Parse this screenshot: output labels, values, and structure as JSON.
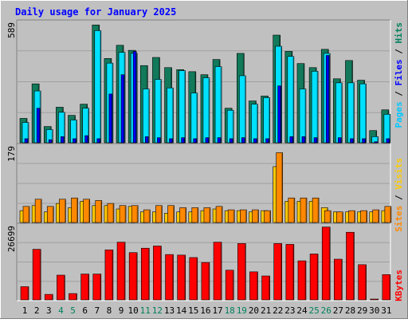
{
  "chart_data": [
    {
      "type": "bar",
      "title": "Daily usage for January 2025",
      "categories": [
        "1",
        "2",
        "3",
        "4",
        "5",
        "6",
        "7",
        "8",
        "9",
        "10",
        "11",
        "12",
        "13",
        "14",
        "15",
        "16",
        "17",
        "18",
        "19",
        "20",
        "21",
        "22",
        "23",
        "24",
        "25",
        "26",
        "27",
        "28",
        "29",
        "30",
        "31"
      ],
      "weekend_days": [
        "4",
        "5",
        "11",
        "12",
        "18",
        "19",
        "25",
        "26"
      ],
      "max_label": "589",
      "ylim": [
        0,
        589
      ],
      "legend": [
        "Pages",
        "Files",
        "Hits"
      ],
      "series": [
        {
          "name": "Hits",
          "color": "#127a5b",
          "values": [
            120,
            290,
            80,
            175,
            135,
            190,
            580,
            415,
            480,
            455,
            380,
            420,
            370,
            360,
            350,
            335,
            410,
            170,
            440,
            206,
            230,
            530,
            450,
            390,
            370,
            460,
            315,
            405,
            308,
            60,
            162
          ]
        },
        {
          "name": "Files",
          "color": "#00e0ff",
          "values": [
            100,
            255,
            65,
            150,
            112,
            170,
            552,
            392,
            445,
            440,
            265,
            312,
            270,
            355,
            245,
            320,
            375,
            160,
            330,
            190,
            222,
            475,
            425,
            265,
            352,
            440,
            295,
            295,
            290,
            30,
            140
          ]
        },
        {
          "name": "Pages",
          "color": "#0000ff",
          "values": [
            20,
            170,
            15,
            30,
            20,
            35,
            20,
            240,
            335,
            450,
            30,
            25,
            20,
            25,
            20,
            25,
            25,
            20,
            25,
            20,
            20,
            280,
            30,
            30,
            25,
            430,
            25,
            20,
            20,
            5,
            20
          ]
        }
      ]
    },
    {
      "type": "bar",
      "categories": [
        "1",
        "2",
        "3",
        "4",
        "5",
        "6",
        "7",
        "8",
        "9",
        "10",
        "11",
        "12",
        "13",
        "14",
        "15",
        "16",
        "17",
        "18",
        "19",
        "20",
        "21",
        "22",
        "23",
        "24",
        "25",
        "26",
        "27",
        "28",
        "29",
        "30",
        "31"
      ],
      "max_label": "179",
      "ylim": [
        0,
        179
      ],
      "legend": [
        "Sites",
        "Visits"
      ],
      "series": [
        {
          "name": "Visits",
          "color": "#ffc800",
          "values": [
            28,
            40,
            25,
            45,
            35,
            50,
            40,
            40,
            32,
            38,
            25,
            25,
            22,
            25,
            25,
            28,
            32,
            28,
            28,
            25,
            28,
            132,
            50,
            50,
            50,
            35,
            25,
            25,
            25,
            25,
            28
          ]
        },
        {
          "name": "Sites",
          "color": "#ff8800",
          "values": [
            38,
            55,
            38,
            55,
            58,
            55,
            52,
            45,
            40,
            40,
            30,
            40,
            40,
            35,
            35,
            35,
            38,
            30,
            30,
            30,
            28,
            165,
            58,
            58,
            58,
            28,
            25,
            28,
            28,
            30,
            38
          ]
        }
      ]
    },
    {
      "type": "bar",
      "categories": [
        "1",
        "2",
        "3",
        "4",
        "5",
        "6",
        "7",
        "8",
        "9",
        "10",
        "11",
        "12",
        "13",
        "14",
        "15",
        "16",
        "17",
        "18",
        "19",
        "20",
        "21",
        "22",
        "23",
        "24",
        "25",
        "26",
        "27",
        "28",
        "29",
        "30",
        "31"
      ],
      "max_label": "26699",
      "ylim": [
        0,
        26699
      ],
      "legend": [
        "KBytes"
      ],
      "series": [
        {
          "name": "KBytes",
          "color": "#ff0000",
          "values": [
            4800,
            18400,
            2000,
            9000,
            2300,
            9400,
            9400,
            18200,
            21000,
            17200,
            18800,
            19600,
            16500,
            16300,
            15400,
            13600,
            21000,
            10800,
            20500,
            10200,
            8700,
            20500,
            20200,
            14200,
            16700,
            26500,
            14800,
            24600,
            12800,
            200,
            9200
          ]
        }
      ]
    }
  ],
  "colors": {
    "background": "#c0c0c0",
    "title": "#0000ff",
    "weekday_label": "#000000",
    "weekend_label": "#00805c",
    "legend_slash": "#000000",
    "Pages": "#00c8ff",
    "Files": "#0000ff",
    "Hits": "#00805c",
    "Sites": "#ff8800",
    "Visits": "#ffcc00",
    "KBytes": "#ff0000"
  }
}
